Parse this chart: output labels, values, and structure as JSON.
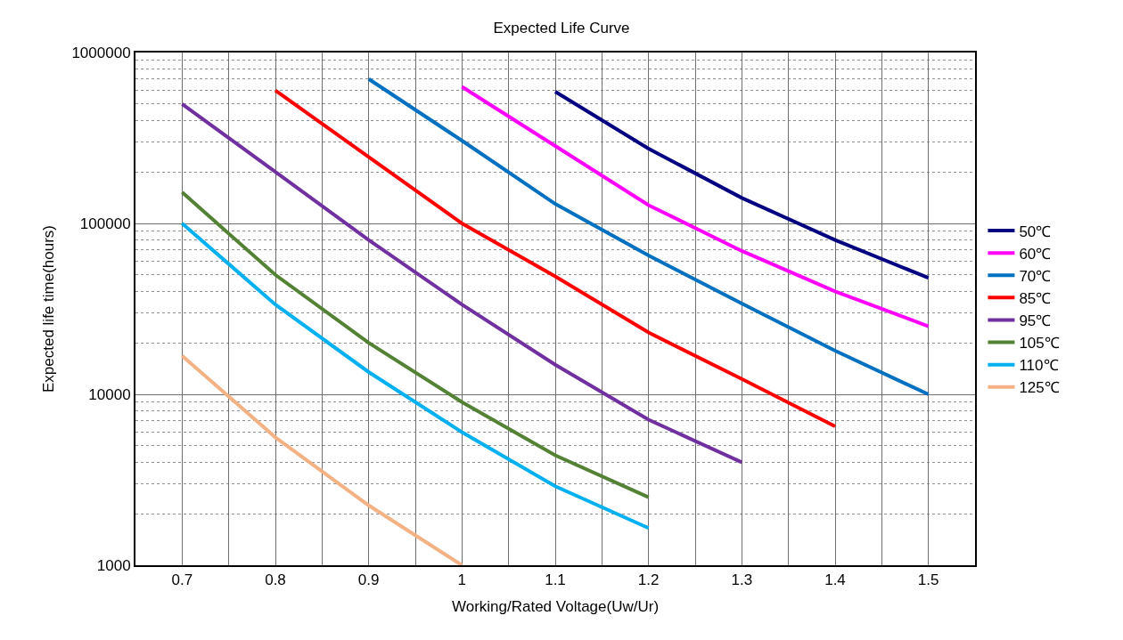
{
  "chart_data": {
    "type": "line",
    "title": "Expected Life Curve",
    "xlabel": "Working/Rated Voltage(Uw/Ur)",
    "ylabel": "Expected life time(hours)",
    "log": "y",
    "grid": true,
    "legend": "right",
    "line_style": "solid",
    "marker": "none",
    "xlim": [
      0.65,
      1.55
    ],
    "xticks": [
      {
        "value": 0.65,
        "label": null
      },
      0.7,
      {
        "value": 0.75,
        "label": null
      },
      0.8,
      {
        "value": 0.85,
        "label": null
      },
      0.9,
      {
        "value": 0.95,
        "label": null
      },
      1,
      {
        "value": 1.05,
        "label": null
      },
      1.1,
      {
        "value": 1.15,
        "label": null
      },
      1.2,
      {
        "value": 1.25,
        "label": null
      },
      1.3,
      {
        "value": 1.35,
        "label": null
      },
      1.4,
      {
        "value": 1.45,
        "label": null
      },
      1.5,
      {
        "value": 1.55,
        "label": null
      }
    ],
    "ylim": [
      1000,
      1000000
    ],
    "yticks": [
      1000,
      10000,
      100000,
      1000000
    ],
    "series": [
      {
        "name": "50℃",
        "color": "#000080",
        "x": [
          1.1,
          1.2,
          1.3,
          1.4,
          1.5
        ],
        "values": [
          590000,
          274000,
          141000,
          80000,
          48000
        ]
      },
      {
        "name": "60℃",
        "color": "#ff00ff",
        "x": [
          1.0,
          1.1,
          1.2,
          1.3,
          1.4,
          1.5
        ],
        "values": [
          630000,
          284000,
          128000,
          69000,
          40000,
          25000
        ]
      },
      {
        "name": "70℃",
        "color": "#0070c0",
        "x": [
          0.9,
          1.0,
          1.1,
          1.2,
          1.3,
          1.4,
          1.5
        ],
        "values": [
          700000,
          305000,
          130000,
          65000,
          34000,
          18000,
          10000
        ]
      },
      {
        "name": "85℃",
        "color": "#ff0000",
        "x": [
          0.8,
          0.9,
          1.0,
          1.1,
          1.2,
          1.3,
          1.4
        ],
        "values": [
          600000,
          245000,
          100000,
          49000,
          23000,
          12300,
          6500
        ]
      },
      {
        "name": "95℃",
        "color": "#7030a0",
        "x": [
          0.7,
          0.8,
          0.9,
          1.0,
          1.1,
          1.2,
          1.3
        ],
        "values": [
          500000,
          200000,
          80000,
          33500,
          14900,
          7100,
          4000
        ]
      },
      {
        "name": "105℃",
        "color": "#548235",
        "x": [
          0.7,
          0.8,
          0.9,
          1.0,
          1.1,
          1.2
        ],
        "values": [
          152000,
          50000,
          20000,
          9000,
          4400,
          2500
        ]
      },
      {
        "name": "110℃",
        "color": "#00b0f0",
        "x": [
          0.7,
          0.8,
          0.9,
          1.0,
          1.1,
          1.2
        ],
        "values": [
          100000,
          33500,
          13500,
          6000,
          2900,
          1650
        ]
      },
      {
        "name": "125℃",
        "color": "#f4b183",
        "x": [
          0.7,
          0.8,
          0.9,
          1.0
        ],
        "values": [
          16800,
          5600,
          2240,
          1000
        ]
      }
    ]
  }
}
